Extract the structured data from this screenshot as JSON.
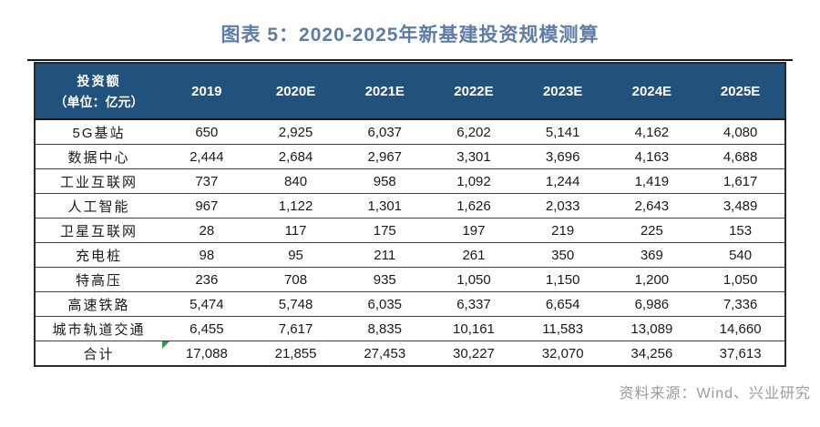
{
  "title": "图表 5：2020-2025年新基建投资规模测算",
  "source": "资料来源：Wind、兴业研究",
  "colors": {
    "title_text": "#5E7CA4",
    "header_bg": "#21527D",
    "header_text": "#FFFFFF",
    "body_text": "#1A1A1A",
    "grid_line": "#424242",
    "outer_border": "#2A2A2A",
    "source_text": "#9B9B9B",
    "flag_green": "#2F9E44"
  },
  "table": {
    "corner_header": {
      "line1": "投资额",
      "line2": "（单位：亿元）"
    },
    "year_headers": [
      "2019",
      "2020E",
      "2021E",
      "2022E",
      "2023E",
      "2024E",
      "2025E"
    ],
    "rows": [
      {
        "label": "5G基站",
        "values": [
          "650",
          "2,925",
          "6,037",
          "6,202",
          "5,141",
          "4,162",
          "4,080"
        ]
      },
      {
        "label": "数据中心",
        "values": [
          "2,444",
          "2,684",
          "2,967",
          "3,301",
          "3,696",
          "4,163",
          "4,688"
        ]
      },
      {
        "label": "工业互联网",
        "values": [
          "737",
          "840",
          "958",
          "1,092",
          "1,244",
          "1,419",
          "1,617"
        ]
      },
      {
        "label": "人工智能",
        "values": [
          "967",
          "1,122",
          "1,301",
          "1,626",
          "2,033",
          "2,643",
          "3,489"
        ]
      },
      {
        "label": "卫星互联网",
        "values": [
          "28",
          "117",
          "175",
          "197",
          "219",
          "225",
          "153"
        ]
      },
      {
        "label": "充电桩",
        "values": [
          "98",
          "95",
          "211",
          "261",
          "350",
          "369",
          "540"
        ]
      },
      {
        "label": "特高压",
        "values": [
          "236",
          "708",
          "935",
          "1,050",
          "1,150",
          "1,200",
          "1,050"
        ]
      },
      {
        "label": "高速铁路",
        "values": [
          "5,474",
          "5,748",
          "6,035",
          "6,337",
          "6,654",
          "6,986",
          "7,336"
        ]
      },
      {
        "label": "城市轨道交通",
        "values": [
          "6,455",
          "7,617",
          "8,835",
          "10,161",
          "11,583",
          "13,089",
          "14,660"
        ]
      },
      {
        "label": "合计",
        "values": [
          "17,088",
          "21,855",
          "27,453",
          "30,227",
          "32,070",
          "34,256",
          "37,613"
        ]
      }
    ],
    "flag_cell": {
      "row_label": "合计",
      "column": "2019",
      "icon": "green-corner-flag-icon"
    }
  },
  "chart_data": {
    "type": "table",
    "title": "图表 5：2020-2025年新基建投资规模测算",
    "unit": "亿元",
    "columns": [
      "投资额（单位：亿元）",
      "2019",
      "2020E",
      "2021E",
      "2022E",
      "2023E",
      "2024E",
      "2025E"
    ],
    "series": [
      {
        "name": "5G基站",
        "values": [
          650,
          2925,
          6037,
          6202,
          5141,
          4162,
          4080
        ]
      },
      {
        "name": "数据中心",
        "values": [
          2444,
          2684,
          2967,
          3301,
          3696,
          4163,
          4688
        ]
      },
      {
        "name": "工业互联网",
        "values": [
          737,
          840,
          958,
          1092,
          1244,
          1419,
          1617
        ]
      },
      {
        "name": "人工智能",
        "values": [
          967,
          1122,
          1301,
          1626,
          2033,
          2643,
          3489
        ]
      },
      {
        "name": "卫星互联网",
        "values": [
          28,
          117,
          175,
          197,
          219,
          225,
          153
        ]
      },
      {
        "name": "充电桩",
        "values": [
          98,
          95,
          211,
          261,
          350,
          369,
          540
        ]
      },
      {
        "name": "特高压",
        "values": [
          236,
          708,
          935,
          1050,
          1150,
          1200,
          1050
        ]
      },
      {
        "name": "高速铁路",
        "values": [
          5474,
          5748,
          6035,
          6337,
          6654,
          6986,
          7336
        ]
      },
      {
        "name": "城市轨道交通",
        "values": [
          6455,
          7617,
          8835,
          10161,
          11583,
          13089,
          14660
        ]
      },
      {
        "name": "合计",
        "values": [
          17088,
          21855,
          27453,
          30227,
          32070,
          34256,
          37613
        ]
      }
    ],
    "source": "资料来源：Wind、兴业研究"
  }
}
